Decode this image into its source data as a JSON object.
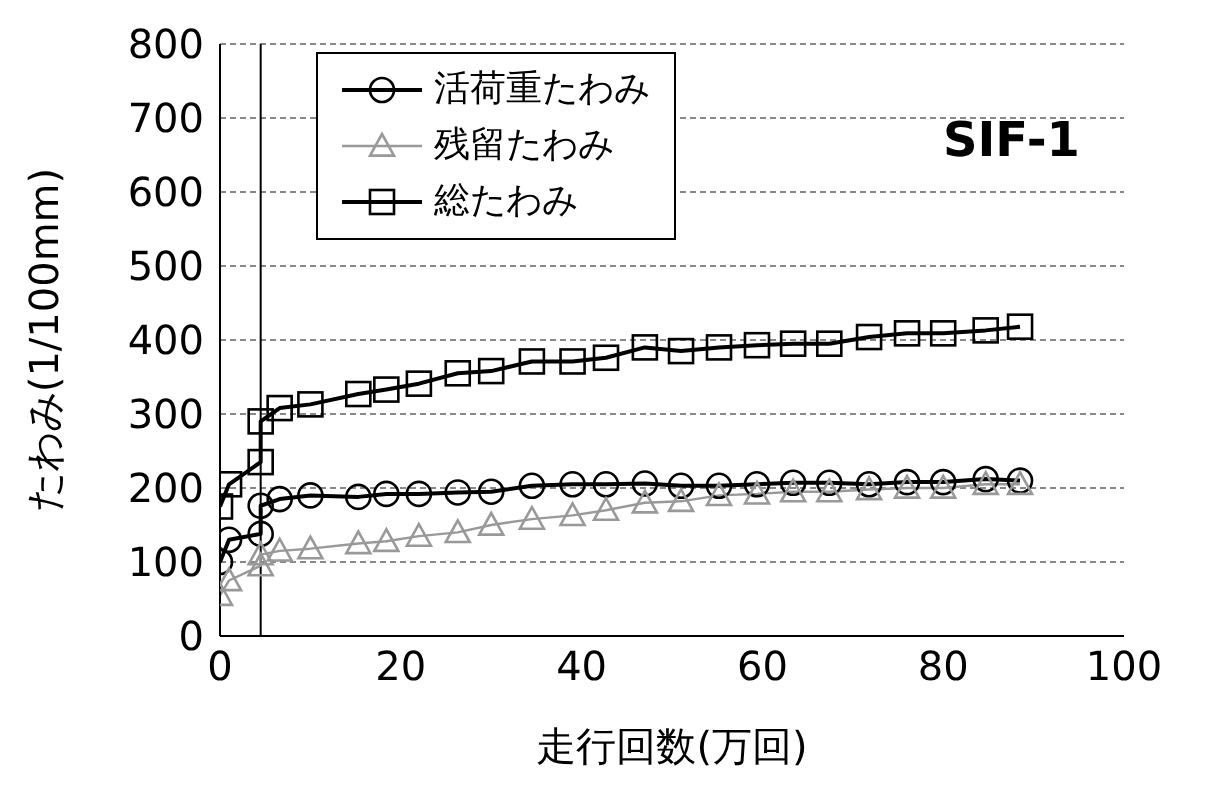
{
  "chart_data": {
    "type": "line",
    "xlabel": "走行回数(万回)",
    "ylabel": "たわみ(1/100mm)",
    "annotations": [
      "SIF-1"
    ],
    "x": [
      0,
      1,
      4.5,
      4.5,
      6.6,
      10,
      15.3,
      18.4,
      22,
      26.3,
      30,
      34.5,
      39,
      42.7,
      47,
      51,
      55.2,
      59.4,
      63.4,
      67.4,
      71.8,
      76,
      80,
      84.7,
      88.5
    ],
    "series": [
      {
        "name": "活荷重たわみ",
        "color": "#000000",
        "marker": "circle",
        "values": [
          100,
          130,
          138,
          176,
          185,
          190,
          188,
          192,
          192,
          194,
          195,
          203,
          205,
          205,
          206,
          203,
          203,
          205,
          207,
          207,
          205,
          208,
          208,
          212,
          210
        ]
      },
      {
        "name": "残留たわみ",
        "color": "#999999",
        "marker": "triangle",
        "values": [
          55,
          75,
          95,
          110,
          115,
          118,
          125,
          128,
          135,
          140,
          150,
          158,
          163,
          170,
          180,
          182,
          190,
          192,
          195,
          195,
          198,
          200,
          200,
          205,
          205
        ]
      },
      {
        "name": "総たわみ",
        "color": "#000000",
        "marker": "square",
        "values": [
          175,
          205,
          235,
          290,
          308,
          313,
          327,
          333,
          341,
          355,
          358,
          371,
          371,
          376,
          390,
          385,
          390,
          393,
          395,
          395,
          404,
          409,
          409,
          413,
          418
        ]
      }
    ],
    "xlim": [
      0,
      100
    ],
    "xticks": [
      0,
      20,
      40,
      60,
      80,
      100
    ],
    "ylim": [
      0,
      800
    ],
    "yticks": [
      0,
      100,
      200,
      300,
      400,
      500,
      600,
      700,
      800
    ],
    "ref_lines": [
      {
        "axis": "x",
        "value": 4.5,
        "color": "#000000"
      }
    ],
    "grid": "y",
    "legend": "top left"
  }
}
